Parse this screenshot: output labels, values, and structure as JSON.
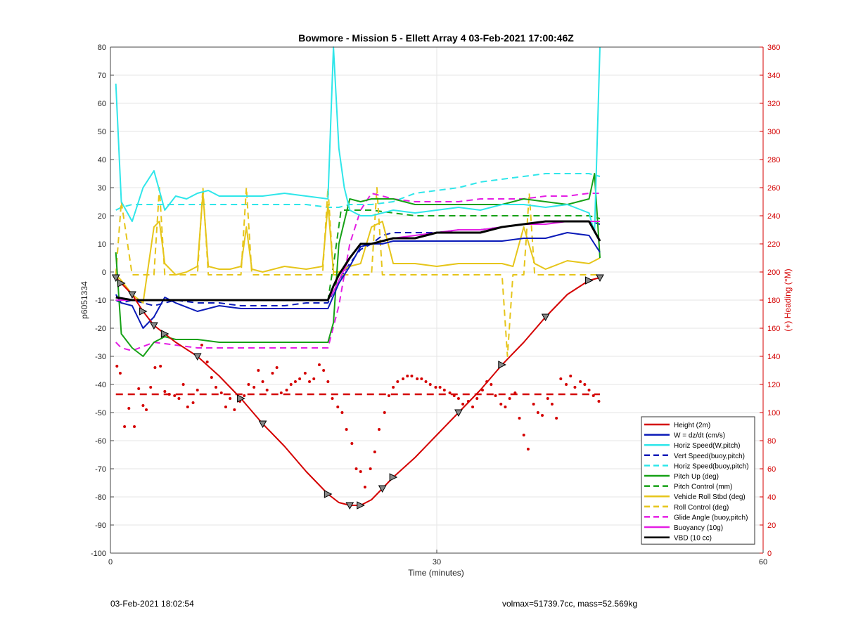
{
  "chart_data": {
    "type": "line",
    "title": "Bowmore - Mission 5 - Ellett Array 4 03-Feb-2021 17:00:46Z",
    "xlabel": "Time (minutes)",
    "ylabel": "p6051334",
    "y2label": "(+) Heading (°M)",
    "xlim": [
      0,
      60
    ],
    "ylim": [
      -100,
      80
    ],
    "y2lim": [
      0,
      360
    ],
    "xticks": [
      0,
      30,
      60
    ],
    "yticks": [
      -100,
      -90,
      -80,
      -70,
      -60,
      -50,
      -40,
      -30,
      -20,
      -10,
      0,
      10,
      20,
      30,
      40,
      50,
      60,
      70,
      80
    ],
    "y2ticks": [
      0,
      20,
      40,
      60,
      80,
      100,
      120,
      140,
      160,
      180,
      200,
      220,
      240,
      260,
      280,
      300,
      320,
      340,
      360
    ],
    "grid": true,
    "legend_position": "bottom-right",
    "colors": {
      "height": "#d40000",
      "w": "#0a1ab8",
      "horiz_w": "#2fe6ea",
      "vert_buoy": "#0a1ab8",
      "horiz_buoy": "#2fe6ea",
      "pitch_up": "#16a116",
      "pitch_control": "#16a116",
      "roll": "#e6c51a",
      "roll_control": "#e6c51a",
      "glide": "#e41de4",
      "buoyancy": "#e41de4",
      "vbd": "#000000",
      "right_axis": "#d40000"
    },
    "series": [
      {
        "key": "height",
        "name": "Height (2m)",
        "color": "#d40000",
        "style": "solid",
        "width": 2,
        "x": [
          0.5,
          1,
          2,
          3,
          4,
          5,
          6,
          8,
          10,
          12,
          14,
          16,
          18,
          20,
          21,
          22,
          23,
          24,
          25,
          26,
          28,
          30,
          32,
          34,
          36,
          38,
          40,
          42,
          44,
          45
        ],
        "y": [
          -2,
          -4,
          -8,
          -14,
          -19,
          -22,
          -25,
          -30,
          -37,
          -45,
          -54,
          -62,
          -71,
          -79,
          -82,
          -83,
          -83,
          -81,
          -77,
          -73,
          -66,
          -58,
          -50,
          -42,
          -33,
          -25,
          -16,
          -8,
          -3,
          -2
        ]
      },
      {
        "key": "w",
        "name": "W = dz/dt (cm/s)",
        "color": "#0a1ab8",
        "style": "solid",
        "width": 2,
        "x": [
          0.5,
          1,
          2,
          3,
          4,
          5,
          6,
          8,
          10,
          12,
          14,
          16,
          18,
          20,
          21,
          22,
          23,
          24,
          25,
          26,
          28,
          30,
          32,
          34,
          36,
          38,
          40,
          42,
          44,
          45
        ],
        "y": [
          -8,
          -11,
          -12,
          -20,
          -16,
          -9,
          -11,
          -14,
          -12,
          -13,
          -13,
          -13,
          -13,
          -13,
          -4,
          2,
          9,
          10,
          10,
          11,
          11,
          11,
          11,
          11,
          11,
          12,
          12,
          14,
          13,
          7
        ]
      },
      {
        "key": "horiz_w",
        "name": "Horiz Speed(W,pitch)",
        "color": "#2fe6ea",
        "style": "solid",
        "width": 2,
        "x": [
          0.5,
          1,
          2,
          3,
          4,
          5,
          6,
          7,
          8,
          9,
          10,
          12,
          14,
          16,
          18,
          20,
          20.5,
          21,
          21.5,
          22,
          23,
          24,
          26,
          28,
          30,
          32,
          34,
          36,
          38,
          40,
          42,
          44,
          44.5,
          45
        ],
        "y": [
          67,
          25,
          18,
          30,
          36,
          22,
          27,
          26,
          28,
          29,
          27,
          27,
          27,
          28,
          27,
          26,
          80,
          44,
          30,
          22,
          20,
          20,
          22,
          21,
          22,
          23,
          22,
          24,
          24,
          23,
          24,
          21,
          14,
          80
        ]
      },
      {
        "key": "vert_buoy",
        "name": "Vert Speed(buoy,pitch)",
        "color": "#0a1ab8",
        "style": "dashed",
        "width": 2,
        "x": [
          0.5,
          1,
          2,
          4,
          6,
          8,
          10,
          12,
          14,
          16,
          18,
          20,
          21,
          22,
          23,
          24,
          25,
          26,
          28,
          30,
          32,
          34,
          36,
          38,
          40,
          42,
          44,
          45
        ],
        "y": [
          -10,
          -11,
          -10,
          -12,
          -10,
          -11,
          -11,
          -12,
          -12,
          -12,
          -11,
          -11,
          -3,
          3,
          8,
          10,
          13,
          14,
          14,
          14,
          15,
          15,
          16,
          17,
          18,
          18,
          18,
          17
        ]
      },
      {
        "key": "horiz_buoy",
        "name": "Horiz Speed(buoy,pitch)",
        "color": "#2fe6ea",
        "style": "dashed",
        "width": 2,
        "x": [
          0.5,
          1,
          2,
          4,
          6,
          8,
          10,
          12,
          14,
          16,
          18,
          20,
          21,
          22,
          24,
          26,
          28,
          30,
          32,
          34,
          36,
          38,
          40,
          42,
          44,
          45
        ],
        "y": [
          22,
          23,
          24,
          24,
          24,
          24,
          24,
          24,
          24,
          24,
          24,
          23,
          23,
          24,
          24,
          25,
          28,
          29,
          30,
          32,
          33,
          34,
          35,
          35,
          35,
          34
        ]
      },
      {
        "key": "pitch_up",
        "name": "Pitch Up (deg)",
        "color": "#16a116",
        "style": "solid",
        "width": 2,
        "x": [
          0.5,
          1,
          2,
          3,
          4,
          5,
          6,
          8,
          10,
          12,
          14,
          16,
          18,
          20,
          20.5,
          21,
          22,
          23,
          24,
          26,
          28,
          30,
          32,
          34,
          36,
          38,
          40,
          42,
          44,
          44.5,
          45
        ],
        "y": [
          7,
          -22,
          -27,
          -30,
          -25,
          -23,
          -24,
          -24,
          -25,
          -25,
          -25,
          -25,
          -25,
          -25,
          -18,
          10,
          26,
          25,
          26,
          26,
          24,
          24,
          24,
          24,
          24,
          26,
          25,
          24,
          26,
          35,
          5
        ]
      },
      {
        "key": "pitch_control",
        "name": "Pitch Control (mm)",
        "color": "#16a116",
        "style": "dashed",
        "width": 2,
        "x": [
          0.5,
          20,
          20.6,
          21.2,
          22,
          24,
          28,
          32,
          36,
          40,
          44,
          45
        ],
        "y": [
          -10,
          -10,
          5,
          22,
          22,
          22,
          20,
          20,
          20,
          20,
          20,
          19
        ]
      },
      {
        "key": "roll",
        "name": "Vehicle Roll Stbd (deg)",
        "color": "#e6c51a",
        "style": "solid",
        "width": 2,
        "x": [
          0.5,
          1,
          2,
          3,
          4,
          4.5,
          5,
          6,
          7,
          8,
          8.5,
          9,
          10,
          11,
          12,
          12.5,
          13,
          14,
          16,
          18,
          19.5,
          20,
          20.5,
          21,
          22,
          23,
          24,
          25,
          26,
          28,
          30,
          32,
          34,
          36,
          37,
          38,
          39,
          40,
          42,
          44,
          45
        ],
        "y": [
          -1,
          -3,
          -8,
          -11,
          16,
          18,
          3,
          -1,
          0,
          2,
          28,
          2,
          1,
          1,
          2,
          16,
          1,
          0,
          2,
          1,
          2,
          24,
          0,
          0,
          2,
          3,
          16,
          18,
          3,
          3,
          2,
          3,
          3,
          3,
          2,
          16,
          3,
          1,
          4,
          3,
          5
        ]
      },
      {
        "key": "roll_control",
        "name": "Roll Control (deg)",
        "color": "#e6c51a",
        "style": "dashed",
        "width": 2,
        "x": [
          0.5,
          1,
          2,
          3,
          4,
          4.5,
          5,
          6,
          8,
          8.5,
          9,
          12,
          12.5,
          13,
          16,
          19.5,
          20,
          20.5,
          24,
          24.5,
          25,
          26,
          30,
          34,
          36,
          36.5,
          37,
          38,
          38.5,
          39,
          40,
          44,
          45
        ],
        "y": [
          -1,
          25,
          -1,
          -1,
          -1,
          30,
          -1,
          -1,
          -1,
          30,
          -1,
          -1,
          30,
          -1,
          -1,
          -1,
          30,
          -1,
          -1,
          30,
          -1,
          -1,
          -1,
          -1,
          -1,
          -30,
          -1,
          -1,
          28,
          -1,
          -1,
          -1,
          -1
        ]
      },
      {
        "key": "glide",
        "name": "Glide Angle (buoy,pitch)",
        "color": "#e41de4",
        "style": "dashed",
        "width": 2,
        "x": [
          0.5,
          1,
          2,
          4,
          6,
          8,
          10,
          12,
          14,
          16,
          18,
          20,
          21,
          22,
          23,
          24,
          25,
          26,
          28,
          30,
          32,
          34,
          36,
          38,
          40,
          42,
          44,
          45
        ],
        "y": [
          -25,
          -27,
          -28,
          -25,
          -26,
          -27,
          -27,
          -27,
          -27,
          -27,
          -27,
          -27,
          -12,
          10,
          22,
          28,
          27,
          26,
          25,
          25,
          25,
          26,
          26,
          26,
          27,
          27,
          28,
          28
        ]
      },
      {
        "key": "buoyancy",
        "name": "Buoyancy (10g)",
        "color": "#e41de4",
        "style": "solid",
        "width": 2,
        "x": [
          0.5,
          2,
          4,
          8,
          12,
          16,
          20,
          20.5,
          21,
          22,
          23,
          24,
          26,
          28,
          30,
          32,
          34,
          36,
          38,
          40,
          42,
          44,
          45
        ],
        "y": [
          -10,
          -10,
          -10,
          -10,
          -10,
          -10,
          -10,
          -7,
          -3,
          5,
          10,
          10,
          12,
          13,
          14,
          15,
          15,
          16,
          17,
          17,
          18,
          18,
          18
        ]
      },
      {
        "key": "vbd",
        "name": "VBD (10 cc)",
        "color": "#000000",
        "style": "solid",
        "width": 3,
        "x": [
          0.5,
          2,
          4,
          8,
          12,
          16,
          20,
          20.5,
          21,
          22,
          23,
          24,
          26,
          28,
          30,
          32,
          34,
          36,
          38,
          40,
          42,
          44,
          45
        ],
        "y": [
          -9,
          -10,
          -10,
          -10,
          -10,
          -10,
          -10,
          -5,
          -1,
          5,
          10,
          10,
          12,
          12,
          14,
          14,
          14,
          16,
          17,
          18,
          18,
          18,
          11
        ]
      }
    ],
    "heading_target": 113,
    "heading_points": {
      "x": [
        0.6,
        0.9,
        1.3,
        1.7,
        2.2,
        2.6,
        3.0,
        3.3,
        3.7,
        4.1,
        4.6,
        5.0,
        5.4,
        5.9,
        6.3,
        6.7,
        7.1,
        7.6,
        8.0,
        8.4,
        8.9,
        9.3,
        9.7,
        10.2,
        10.6,
        11.0,
        11.4,
        11.9,
        12.3,
        12.7,
        13.2,
        13.6,
        14.0,
        14.4,
        14.9,
        15.3,
        15.7,
        16.2,
        16.6,
        17.0,
        17.4,
        17.9,
        18.3,
        18.7,
        19.2,
        19.6,
        20.0,
        20.4,
        20.9,
        21.3,
        21.7,
        22.2,
        22.6,
        23.0,
        23.4,
        23.9,
        24.3,
        24.7,
        25.2,
        25.6,
        26.0,
        26.4,
        26.9,
        27.3,
        27.7,
        28.2,
        28.6,
        29.0,
        29.4,
        29.9,
        30.3,
        30.7,
        31.2,
        31.6,
        32.0,
        32.4,
        32.9,
        33.3,
        33.7,
        34.2,
        34.6,
        35.0,
        35.4,
        35.9,
        36.3,
        36.7,
        37.2,
        37.6,
        38.0,
        38.4,
        38.9,
        39.3,
        39.7,
        40.2,
        40.6,
        41.0,
        41.4,
        41.9,
        42.3,
        42.7,
        43.2,
        43.6,
        44.0,
        44.4,
        44.9
      ],
      "y": [
        133,
        128,
        90,
        103,
        90,
        117,
        105,
        102,
        118,
        132,
        133,
        115,
        113,
        112,
        110,
        120,
        104,
        107,
        116,
        148,
        136,
        125,
        118,
        114,
        104,
        110,
        102,
        108,
        112,
        120,
        118,
        130,
        122,
        116,
        128,
        132,
        114,
        116,
        120,
        122,
        124,
        128,
        122,
        124,
        134,
        130,
        122,
        110,
        104,
        100,
        88,
        78,
        60,
        58,
        47,
        60,
        72,
        88,
        100,
        112,
        118,
        122,
        124,
        126,
        126,
        124,
        124,
        122,
        120,
        118,
        118,
        116,
        114,
        112,
        110,
        106,
        108,
        104,
        110,
        116,
        122,
        120,
        112,
        106,
        104,
        110,
        114,
        96,
        84,
        74,
        106,
        100,
        98,
        110,
        106,
        96,
        124,
        120,
        126,
        118,
        122,
        120,
        116,
        112,
        108
      ]
    }
  },
  "footer": {
    "left": "03-Feb-2021 18:02:54",
    "right": "volmax=51739.7cc, mass=52.569kg"
  }
}
